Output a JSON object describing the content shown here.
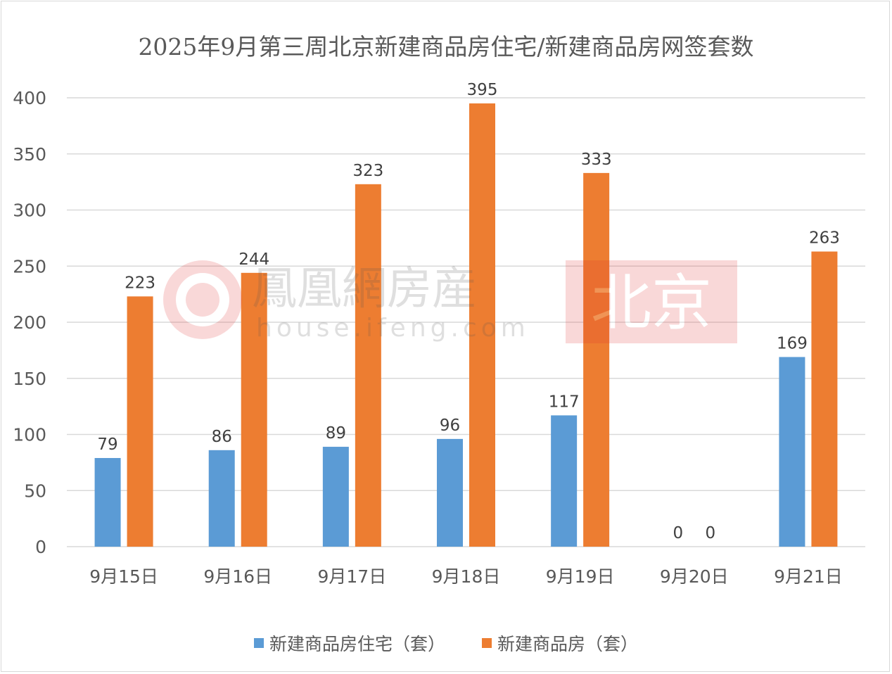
{
  "chart_data": {
    "type": "bar",
    "title": "2025年9月第三周北京新建商品房住宅/新建商品房网签套数",
    "categories": [
      "9月15日",
      "9月16日",
      "9月17日",
      "9月18日",
      "9月19日",
      "9月20日",
      "9月21日"
    ],
    "series": [
      {
        "name": "新建商品房住宅（套）",
        "color": "#5b9bd5",
        "values": [
          79,
          86,
          89,
          96,
          117,
          0,
          169
        ]
      },
      {
        "name": "新建商品房（套）",
        "color": "#ed7d31",
        "values": [
          223,
          244,
          323,
          395,
          333,
          0,
          263
        ]
      }
    ],
    "ylim": [
      0,
      400
    ],
    "yticks": [
      0,
      50,
      100,
      150,
      200,
      250,
      300,
      350,
      400
    ],
    "grid": true,
    "legend_position": "bottom"
  },
  "watermark": {
    "brand": "鳳凰網房産",
    "url": "house.ifeng.com",
    "city": "北京"
  }
}
